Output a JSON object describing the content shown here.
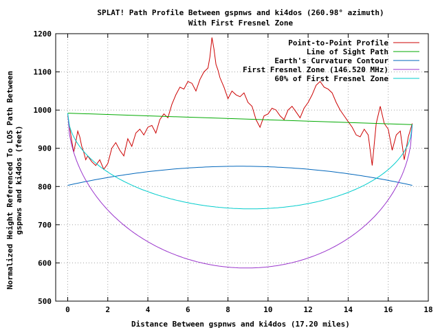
{
  "chart_data": {
    "type": "line",
    "title": "SPLAT! Path Profile Between gspnws and ki4dos (260.98° azimuth)",
    "subtitle": "With First Fresnel Zone",
    "xlabel": "Distance Between gspnws and ki4dos (17.20 miles)",
    "ylabel_line1": "Normalized Height Referenced To LOS Path Between",
    "ylabel_line2": "gspnws and ki4dos (feet)",
    "xlim": [
      -0.6,
      18
    ],
    "ylim": [
      500,
      1200
    ],
    "xticks": [
      "0",
      "2",
      "4",
      "6",
      "8",
      "10",
      "12",
      "14",
      "16",
      "18"
    ],
    "yticks": [
      "500",
      "600",
      "700",
      "800",
      "900",
      "1000",
      "1100",
      "1200"
    ],
    "grid": true,
    "legend_position": "top-right",
    "path_length": 17.2,
    "series": [
      {
        "name": "Point-to-Point Profile",
        "color": "#cc0000",
        "x": [
          0,
          0.1,
          0.2,
          0.3,
          0.4,
          0.5,
          0.6,
          0.7,
          0.8,
          0.9,
          1.0,
          1.2,
          1.4,
          1.6,
          1.8,
          2.0,
          2.2,
          2.4,
          2.6,
          2.8,
          3.0,
          3.2,
          3.4,
          3.6,
          3.8,
          4.0,
          4.2,
          4.4,
          4.6,
          4.8,
          5.0,
          5.2,
          5.4,
          5.6,
          5.8,
          6.0,
          6.2,
          6.4,
          6.6,
          6.8,
          7.0,
          7.1,
          7.2,
          7.3,
          7.4,
          7.5,
          7.6,
          7.8,
          8.0,
          8.2,
          8.4,
          8.6,
          8.8,
          9.0,
          9.2,
          9.4,
          9.6,
          9.8,
          10.0,
          10.2,
          10.4,
          10.6,
          10.8,
          11.0,
          11.2,
          11.4,
          11.6,
          11.8,
          12.0,
          12.2,
          12.4,
          12.6,
          12.8,
          13.0,
          13.2,
          13.4,
          13.6,
          13.8,
          14.0,
          14.2,
          14.4,
          14.6,
          14.8,
          15.0,
          15.2,
          15.4,
          15.6,
          15.8,
          16.0,
          16.2,
          16.4,
          16.6,
          16.8,
          17.0,
          17.2
        ],
        "values": [
          985,
          955,
          920,
          890,
          915,
          945,
          930,
          905,
          890,
          870,
          880,
          865,
          855,
          870,
          845,
          860,
          900,
          915,
          895,
          880,
          925,
          905,
          940,
          950,
          935,
          955,
          960,
          940,
          975,
          990,
          980,
          1015,
          1040,
          1060,
          1055,
          1075,
          1070,
          1050,
          1080,
          1100,
          1110,
          1140,
          1190,
          1160,
          1120,
          1105,
          1085,
          1060,
          1030,
          1050,
          1040,
          1035,
          1045,
          1020,
          1010,
          975,
          955,
          985,
          990,
          1005,
          1000,
          985,
          975,
          1000,
          1010,
          995,
          980,
          1005,
          1020,
          1040,
          1065,
          1075,
          1060,
          1055,
          1045,
          1020,
          1000,
          985,
          970,
          955,
          935,
          930,
          950,
          935,
          855,
          965,
          1010,
          965,
          950,
          895,
          935,
          945,
          870,
          930,
          965
        ]
      },
      {
        "name": "Line of Sight Path",
        "color": "#00aa00",
        "x": [
          0,
          17.2
        ],
        "values": [
          992,
          962
        ]
      },
      {
        "name": "Earth's Curvature Contour",
        "color": "#0066bb",
        "shape": "arc",
        "x": [
          0,
          8.6,
          17.2
        ],
        "values": [
          803,
          853,
          803
        ]
      },
      {
        "name": "First Fresnel Zone (146.520 MHz)",
        "color": "#9933cc",
        "shape": "fresnel",
        "x": [
          0,
          8.6,
          17.2
        ],
        "values": [
          992,
          587,
          962
        ]
      },
      {
        "name": "60% of First Fresnel Zone",
        "color": "#00cccc",
        "shape": "fresnel",
        "x": [
          0,
          8.6,
          17.2
        ],
        "values": [
          992,
          742,
          962
        ]
      }
    ]
  }
}
